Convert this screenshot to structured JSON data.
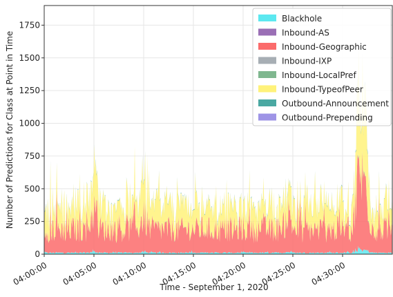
{
  "chart_data": {
    "type": "area",
    "title": "",
    "xlabel": "Time - September 1, 2020",
    "ylabel": "Number of Predictions for Class at Point in Time",
    "ylim": [
      0,
      1900
    ],
    "xlim": [
      "04:00:00",
      "04:35:00"
    ],
    "y_ticks": [
      0,
      250,
      500,
      750,
      1000,
      1250,
      1500,
      1750
    ],
    "x_ticks": [
      "04:00:00",
      "04:05:00",
      "04:10:00",
      "04:15:00",
      "04:20:00",
      "04:25:00",
      "04:30:00"
    ],
    "grid": true,
    "legend_position": "top-right",
    "stacked": true,
    "series": [
      {
        "name": "Blackhole",
        "color": "#5ce8f0",
        "typical_value": 10
      },
      {
        "name": "Inbound-AS",
        "color": "#9a6fb5",
        "typical_value": 0
      },
      {
        "name": "Inbound-Geographic",
        "color": "#fb6b6b",
        "typical_value": 170
      },
      {
        "name": "Inbound-IXP",
        "color": "#a7aeb4",
        "typical_value": 0
      },
      {
        "name": "Inbound-LocalPref",
        "color": "#7fb78f",
        "typical_value": 2
      },
      {
        "name": "Inbound-TypeofPeer",
        "color": "#fff27a",
        "typical_value": 160
      },
      {
        "name": "Outbound-Announcement",
        "color": "#4aa8a2",
        "typical_value": 4
      },
      {
        "name": "Outbound-Prepending",
        "color": "#9e94e6",
        "typical_value": 0
      }
    ]
  }
}
